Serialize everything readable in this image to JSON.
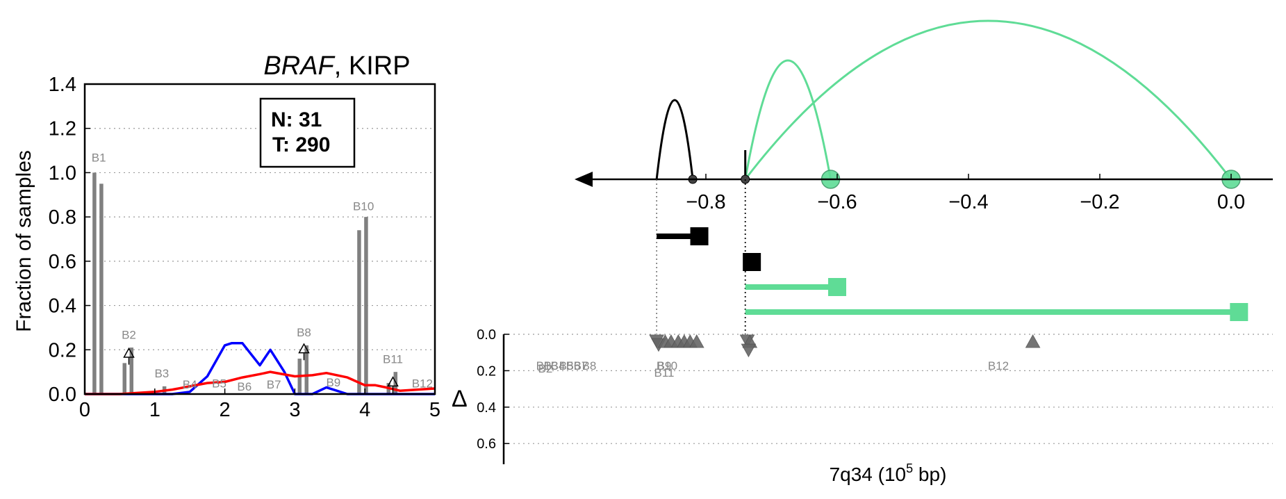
{
  "left_panel": {
    "title_gene": "BRAF",
    "title_rest": ", KIRP",
    "stats": {
      "n_line": "N: 31",
      "t_line": "T: 290"
    }
  },
  "right_panel": {
    "xlabel_main": "7q34 (10",
    "xlabel_exp": "5",
    "xlabel_tail": " bp)",
    "delta_label": "Δ"
  },
  "chart_data": [
    {
      "type": "bar",
      "title": "BRAF, KIRP",
      "xlabel": "",
      "ylabel": "Fraction of samples",
      "xlim": [
        0,
        5
      ],
      "ylim": [
        0,
        1.4
      ],
      "x_ticks": [
        "0",
        "1",
        "2",
        "3",
        "4",
        "5"
      ],
      "y_ticks": [
        "0.0",
        "0.2",
        "0.4",
        "0.6",
        "0.8",
        "1.0",
        "1.2",
        "1.4"
      ],
      "grid": "horizontal dotted",
      "bins": [
        {
          "label": "B1",
          "x": 0.2,
          "normal": 1.0,
          "tumor": 0.95,
          "label_y": 1.05,
          "delta_marker": false
        },
        {
          "label": "B2",
          "x": 0.63,
          "normal": 0.14,
          "tumor": 0.21,
          "label_y": 0.25,
          "delta_marker": true,
          "delta_y": 0.18
        },
        {
          "label": "B3",
          "x": 1.1,
          "normal": 0.0,
          "tumor": 0.035,
          "label_y": 0.075,
          "delta_marker": false
        },
        {
          "label": "B4",
          "x": 1.5,
          "normal": 0.0,
          "tumor": 0.0,
          "label_y": 0.025,
          "delta_marker": false
        },
        {
          "label": "B5",
          "x": 1.92,
          "normal": 0.0,
          "tumor": 0.0,
          "label_y": 0.03,
          "delta_marker": false
        },
        {
          "label": "B6",
          "x": 2.28,
          "normal": 0.0,
          "tumor": 0.0,
          "label_y": 0.015,
          "delta_marker": false
        },
        {
          "label": "B7",
          "x": 2.7,
          "normal": 0.0,
          "tumor": 0.0,
          "label_y": 0.025,
          "delta_marker": false
        },
        {
          "label": "B8",
          "x": 3.13,
          "normal": 0.16,
          "tumor": 0.22,
          "label_y": 0.26,
          "delta_marker": true,
          "delta_y": 0.2
        },
        {
          "label": "B9",
          "x": 3.55,
          "normal": 0.0,
          "tumor": 0.0,
          "label_y": 0.035,
          "delta_marker": false
        },
        {
          "label": "B10",
          "x": 3.98,
          "normal": 0.74,
          "tumor": 0.8,
          "label_y": 0.83,
          "delta_marker": false
        },
        {
          "label": "B11",
          "x": 4.4,
          "normal": 0.05,
          "tumor": 0.1,
          "label_y": 0.14,
          "delta_marker": true,
          "delta_y": 0.05
        },
        {
          "label": "B12",
          "x": 4.82,
          "normal": 0.0,
          "tumor": 0.0,
          "label_y": 0.03,
          "delta_marker": false
        }
      ],
      "bar_color": "#808080",
      "series": [
        {
          "color": "#0000ff",
          "x": [
            0,
            0.25,
            0.5,
            0.75,
            1.0,
            1.25,
            1.5,
            1.75,
            2.0,
            2.1,
            2.25,
            2.5,
            2.65,
            2.85,
            3.0,
            3.25,
            3.45,
            3.75,
            4.0,
            4.5,
            5.0
          ],
          "y": [
            0,
            0,
            0,
            0,
            0,
            0,
            0.01,
            0.08,
            0.22,
            0.23,
            0.23,
            0.13,
            0.2,
            0.1,
            0.0,
            0.0,
            0.03,
            0.0,
            0.0,
            0.0,
            0.0
          ]
        },
        {
          "color": "#ff0000",
          "x": [
            0,
            0.25,
            0.5,
            0.75,
            1.0,
            1.25,
            1.5,
            1.75,
            2.0,
            2.25,
            2.5,
            2.65,
            3.0,
            3.25,
            3.45,
            3.75,
            4.0,
            4.15,
            4.3,
            4.5,
            4.75,
            5.0
          ],
          "y": [
            0,
            0,
            0,
            0.005,
            0.01,
            0.02,
            0.035,
            0.05,
            0.055,
            0.075,
            0.09,
            0.1,
            0.08,
            0.085,
            0.095,
            0.075,
            0.04,
            0.04,
            0.03,
            0.015,
            0.02,
            0.025
          ]
        }
      ]
    },
    {
      "type": "arc",
      "title": "",
      "xlabel": "7q34 (10^5 bp)",
      "ylabel": "Δ",
      "xlim": [
        -1.0,
        0.05
      ],
      "x_ticks": [
        "−0.8",
        "−0.6",
        "−0.4",
        "−0.2",
        "0.0"
      ],
      "x_tick_values": [
        -0.8,
        -0.6,
        -0.4,
        -0.2,
        0.0
      ],
      "delta_ticks": [
        "0.0",
        "0.2",
        "0.4",
        "0.6"
      ],
      "delta_lim": [
        0,
        0.7
      ],
      "arcs": [
        {
          "from": -0.875,
          "to": -0.82,
          "height": 0.3,
          "color": "#000000",
          "end_marker": "small-dot"
        },
        {
          "from": -0.74,
          "to": -0.61,
          "height": 0.45,
          "color": "#5fdc96",
          "end_marker": "circle"
        },
        {
          "from": -0.74,
          "to": 0.0,
          "height": 0.6,
          "color": "#5fdc96",
          "end_marker": "circle"
        }
      ],
      "segments": [
        {
          "from": -0.875,
          "to": -0.81,
          "row": 1,
          "color": "#000000"
        },
        {
          "from": -0.73,
          "to": -0.73,
          "row": 2,
          "color": "#000000"
        },
        {
          "from": -0.74,
          "to": -0.6,
          "row": 3,
          "color": "#5fdc96"
        },
        {
          "from": -0.74,
          "to": 0.012,
          "row": 4,
          "color": "#5fdc96"
        }
      ],
      "bins": [
        {
          "label": "B1",
          "x": -0.875,
          "delta": 0.0,
          "direction": "down"
        },
        {
          "label": "B2",
          "x": -0.872,
          "delta": 0.02,
          "direction": "down"
        },
        {
          "label": "B3",
          "x": -0.862,
          "delta": 0.0,
          "direction": "up"
        },
        {
          "label": "B4",
          "x": -0.853,
          "delta": 0.0,
          "direction": "up"
        },
        {
          "label": "B5",
          "x": -0.842,
          "delta": 0.0,
          "direction": "up"
        },
        {
          "label": "B6",
          "x": -0.833,
          "delta": 0.0,
          "direction": "up"
        },
        {
          "label": "B7",
          "x": -0.824,
          "delta": 0.0,
          "direction": "up"
        },
        {
          "label": "B8",
          "x": -0.814,
          "delta": 0.0,
          "direction": "up"
        },
        {
          "label": "B9",
          "x": -0.737,
          "delta": 0.0,
          "direction": "down"
        },
        {
          "label": "B10",
          "x": -0.733,
          "delta": 0.0,
          "direction": "up"
        },
        {
          "label": "B11",
          "x": -0.735,
          "delta": 0.05,
          "direction": "down"
        },
        {
          "label": "B12",
          "x": -0.302,
          "delta": 0.0,
          "direction": "up"
        }
      ],
      "marker_color": "#666666"
    }
  ]
}
